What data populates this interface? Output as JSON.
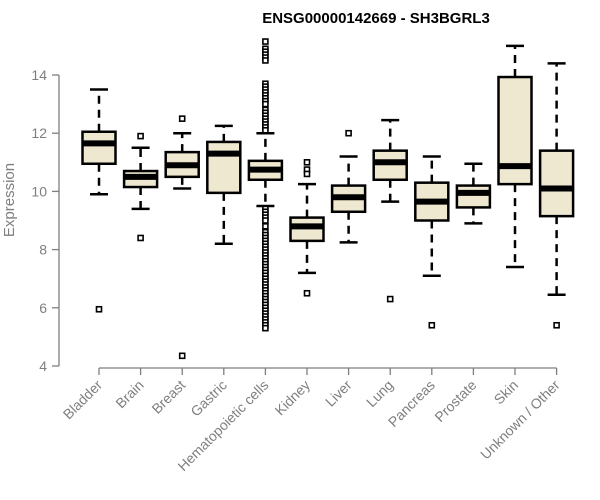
{
  "chart_data": {
    "type": "box",
    "title": "ENSG00000142669 - SH3BGRL3",
    "xlabel": "",
    "ylabel": "Expression",
    "ylim": [
      4,
      15.2
    ],
    "yticks": [
      4,
      6,
      8,
      10,
      12,
      14
    ],
    "grid": false,
    "box_color": "#ede8cf",
    "line_color": "#000000",
    "categories": [
      "Bladder",
      "Brain",
      "Breast",
      "Gastric",
      "Hematopoietic cells",
      "Kidney",
      "Liver",
      "Lung",
      "Pancreas",
      "Prostate",
      "Skin",
      "Unknown / Other"
    ],
    "series": [
      {
        "name": "Bladder",
        "whisker_low": 9.9,
        "q1": 10.95,
        "median": 11.65,
        "q3": 12.05,
        "whisker_high": 13.5,
        "outliers": [
          5.95
        ]
      },
      {
        "name": "Brain",
        "whisker_low": 9.4,
        "q1": 10.15,
        "median": 10.5,
        "q3": 10.7,
        "whisker_high": 11.5,
        "outliers": [
          11.9,
          8.4
        ]
      },
      {
        "name": "Breast",
        "whisker_low": 10.1,
        "q1": 10.5,
        "median": 10.9,
        "q3": 11.35,
        "whisker_high": 12.0,
        "outliers": [
          12.5,
          4.35
        ]
      },
      {
        "name": "Gastric",
        "whisker_low": 8.2,
        "q1": 9.95,
        "median": 11.3,
        "q3": 11.7,
        "whisker_high": 12.25,
        "outliers": []
      },
      {
        "name": "Hematopoietic cells",
        "whisker_low": 9.5,
        "q1": 10.4,
        "median": 10.75,
        "q3": 11.05,
        "whisker_high": 12.0,
        "outliers": [
          15.15,
          14.9,
          14.8,
          14.7,
          14.6,
          14.5,
          13.7,
          13.6,
          13.5,
          13.4,
          13.3,
          13.2,
          13.1,
          13.0,
          12.8,
          12.7,
          12.6,
          12.5,
          12.4,
          12.3,
          12.2,
          12.1,
          9.4,
          9.3,
          9.2,
          9.1,
          9.0,
          8.8,
          8.6,
          8.5,
          8.4,
          8.3,
          8.2,
          8.1,
          8.0,
          7.9,
          7.8,
          7.7,
          7.6,
          7.5,
          7.4,
          7.3,
          7.2,
          7.1,
          7.0,
          6.9,
          6.8,
          6.7,
          6.6,
          6.5,
          6.4,
          6.3,
          6.2,
          6.1,
          6.0,
          5.9,
          5.8,
          5.7,
          5.6,
          5.5,
          5.4,
          5.3
        ]
      },
      {
        "name": "Kidney",
        "whisker_low": 7.2,
        "q1": 8.3,
        "median": 8.8,
        "q3": 9.1,
        "whisker_high": 10.25,
        "outliers": [
          11.0,
          10.75,
          10.6,
          6.5
        ]
      },
      {
        "name": "Liver",
        "whisker_low": 8.25,
        "q1": 9.3,
        "median": 9.8,
        "q3": 10.2,
        "whisker_high": 11.2,
        "outliers": [
          12.0
        ]
      },
      {
        "name": "Lung",
        "whisker_low": 9.65,
        "q1": 10.4,
        "median": 11.0,
        "q3": 11.4,
        "whisker_high": 12.45,
        "outliers": [
          6.3
        ]
      },
      {
        "name": "Pancreas",
        "whisker_low": 7.1,
        "q1": 9.0,
        "median": 9.65,
        "q3": 10.3,
        "whisker_high": 11.2,
        "outliers": [
          5.4
        ]
      },
      {
        "name": "Prostate",
        "whisker_low": 8.9,
        "q1": 9.45,
        "median": 9.95,
        "q3": 10.2,
        "whisker_high": 10.95,
        "outliers": []
      },
      {
        "name": "Skin",
        "whisker_low": 7.4,
        "q1": 10.25,
        "median": 10.87,
        "q3": 13.93,
        "whisker_high": 15.0,
        "outliers": []
      },
      {
        "name": "Unknown / Other",
        "whisker_low": 6.45,
        "q1": 9.15,
        "median": 10.1,
        "q3": 11.4,
        "whisker_high": 14.4,
        "outliers": [
          5.4
        ]
      }
    ]
  }
}
